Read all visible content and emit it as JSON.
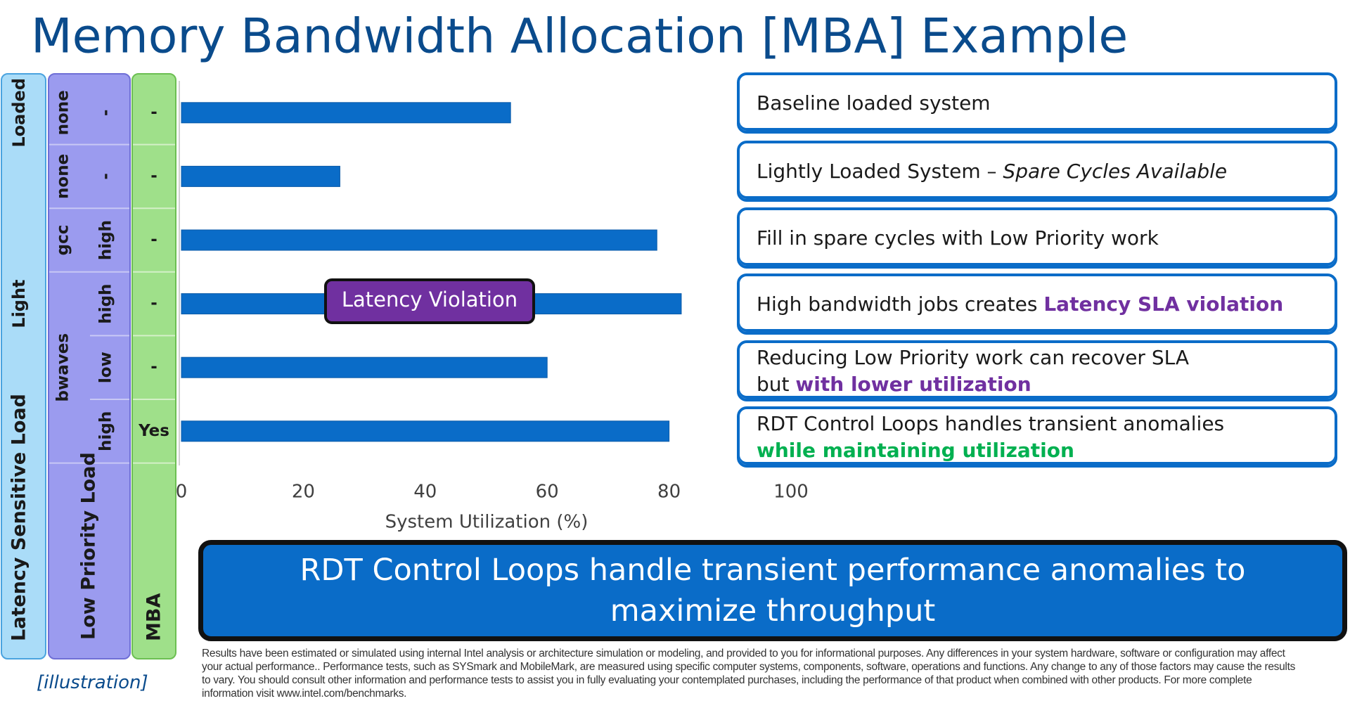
{
  "title": "Memory Bandwidth Allocation [MBA] Example",
  "latency_load": {
    "header": "Latency Sensitive Load",
    "labels": [
      "Loaded",
      "Light"
    ]
  },
  "low_priority_load": {
    "header": "Low Priority Load",
    "workloads": [
      "none",
      "none",
      "gcc",
      "bwaves"
    ],
    "intensity": [
      "-",
      "-",
      "high",
      "high",
      "low",
      "high"
    ]
  },
  "mba": {
    "header": "MBA",
    "settings": [
      "-",
      "-",
      "-",
      "-",
      "-",
      "Yes"
    ]
  },
  "chart_data": {
    "type": "bar",
    "orientation": "horizontal",
    "xlabel": "System Utilization (%)",
    "values": [
      54,
      26,
      78,
      82,
      60,
      80
    ],
    "color": "#0a6cc8",
    "xlim": [
      0,
      100
    ],
    "xticks": [
      0,
      20,
      40,
      60,
      80,
      100
    ],
    "annotation": "Latency Violation"
  },
  "callouts": [
    {
      "lines": [
        [
          {
            "text": "Baseline loaded system",
            "style": "plain"
          }
        ]
      ]
    },
    {
      "lines": [
        [
          {
            "text": "Lightly Loaded System – ",
            "style": "plain"
          },
          {
            "text": "Spare Cycles Available",
            "style": "italic"
          }
        ]
      ]
    },
    {
      "lines": [
        [
          {
            "text": "Fill in spare cycles with Low Priority work",
            "style": "plain"
          }
        ]
      ]
    },
    {
      "lines": [
        [
          {
            "text": "High bandwidth jobs creates ",
            "style": "plain"
          },
          {
            "text": "Latency SLA violation",
            "style": "purple"
          }
        ]
      ]
    },
    {
      "lines": [
        [
          {
            "text": "Reducing Low Priority work can recover SLA",
            "style": "plain"
          }
        ],
        [
          {
            "text": "but ",
            "style": "plain"
          },
          {
            "text": "with lower utilization",
            "style": "purple"
          }
        ]
      ]
    },
    {
      "lines": [
        [
          {
            "text": "RDT Control Loops handles transient anomalies",
            "style": "plain"
          }
        ],
        [
          {
            "text": "while maintaining utilization",
            "style": "green"
          }
        ]
      ]
    }
  ],
  "banner": "RDT Control Loops handle transient performance anomalies to maximize throughput",
  "disclaimer": "Results have been estimated or simulated using internal Intel analysis or architecture simulation or modeling, and provided to you for informational purposes. Any differences in your system hardware, software or configuration may affect your actual performance.. Performance tests, such as SYSmark and MobileMark, are measured using specific computer systems, components, software, operations and functions. Any change to any of those factors may cause the results to vary. You should consult other information and performance tests to assist you in fully evaluating your contemplated purchases, including the performance of that product when combined with other products. For more complete information visit www.intel.com/benchmarks.",
  "note": "[illustration]"
}
